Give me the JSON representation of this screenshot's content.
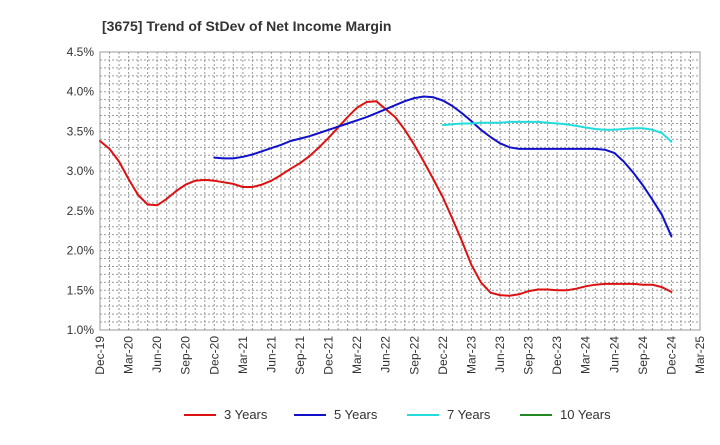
{
  "chart_data": {
    "type": "line",
    "title": "[3675]  Trend of StDev of Net Income Margin",
    "x_categories": [
      "Dec-19",
      "Mar-20",
      "Jun-20",
      "Sep-20",
      "Dec-20",
      "Mar-21",
      "Jun-21",
      "Sep-21",
      "Dec-21",
      "Mar-22",
      "Jun-22",
      "Sep-22",
      "Dec-22",
      "Mar-23",
      "Jun-23",
      "Sep-23",
      "Dec-23",
      "Mar-24",
      "Jun-24",
      "Sep-24",
      "Dec-24",
      "Mar-25"
    ],
    "y_ticks": [
      "4.5%",
      "4.0%",
      "3.5%",
      "3.0%",
      "2.5%",
      "2.0%",
      "1.5%",
      "1.0%"
    ],
    "ylim": [
      1.0,
      4.5
    ],
    "y_unit": "%",
    "grid": true,
    "legend_position": "bottom",
    "series": [
      {
        "name": "3 Years",
        "color": "#dd1111",
        "x": [
          0,
          0.333,
          0.667,
          1,
          1.333,
          1.667,
          2,
          2.333,
          2.667,
          3,
          3.333,
          3.667,
          4,
          4.333,
          4.667,
          5,
          5.333,
          5.667,
          6,
          6.333,
          6.667,
          7,
          7.333,
          7.667,
          8,
          8.333,
          8.667,
          9,
          9.333,
          9.667,
          10,
          10.333,
          10.667,
          11,
          11.333,
          11.667,
          12,
          12.333,
          12.667,
          13,
          13.333,
          13.667,
          14,
          14.333,
          14.667,
          15,
          15.333,
          15.667,
          16,
          16.333,
          16.667,
          17,
          17.333,
          17.667,
          18,
          18.333,
          18.667,
          19,
          19.333,
          19.667,
          20
        ],
        "values": [
          3.38,
          3.28,
          3.12,
          2.9,
          2.7,
          2.58,
          2.57,
          2.65,
          2.75,
          2.83,
          2.88,
          2.89,
          2.88,
          2.86,
          2.84,
          2.8,
          2.8,
          2.83,
          2.88,
          2.95,
          3.03,
          3.1,
          3.19,
          3.3,
          3.42,
          3.55,
          3.68,
          3.8,
          3.87,
          3.88,
          3.78,
          3.68,
          3.52,
          3.33,
          3.12,
          2.9,
          2.67,
          2.4,
          2.12,
          1.82,
          1.6,
          1.47,
          1.44,
          1.43,
          1.45,
          1.49,
          1.51,
          1.51,
          1.5,
          1.5,
          1.52,
          1.55,
          1.57,
          1.58,
          1.58,
          1.58,
          1.58,
          1.57,
          1.57,
          1.54,
          1.48
        ]
      },
      {
        "name": "5 Years",
        "color": "#1111cc",
        "x": [
          4,
          4.333,
          4.667,
          5,
          5.333,
          5.667,
          6,
          6.333,
          6.667,
          7,
          7.333,
          7.667,
          8,
          8.333,
          8.667,
          9,
          9.333,
          9.667,
          10,
          10.333,
          10.667,
          11,
          11.333,
          11.667,
          12,
          12.333,
          12.667,
          13,
          13.333,
          13.667,
          14,
          14.333,
          14.667,
          15,
          15.333,
          15.667,
          16,
          16.333,
          16.667,
          17,
          17.333,
          17.667,
          18,
          18.333,
          18.667,
          19,
          19.333,
          19.667,
          20
        ],
        "values": [
          3.17,
          3.16,
          3.16,
          3.18,
          3.21,
          3.25,
          3.29,
          3.33,
          3.38,
          3.41,
          3.44,
          3.48,
          3.52,
          3.56,
          3.6,
          3.64,
          3.68,
          3.73,
          3.78,
          3.83,
          3.88,
          3.92,
          3.94,
          3.93,
          3.89,
          3.82,
          3.73,
          3.63,
          3.52,
          3.43,
          3.35,
          3.3,
          3.28,
          3.28,
          3.28,
          3.28,
          3.28,
          3.28,
          3.28,
          3.28,
          3.28,
          3.27,
          3.23,
          3.12,
          2.98,
          2.82,
          2.64,
          2.45,
          2.18
        ]
      },
      {
        "name": "7 Years",
        "color": "#22dddd",
        "x": [
          12,
          12.333,
          12.667,
          13,
          13.333,
          13.667,
          14,
          14.333,
          14.667,
          15,
          15.333,
          15.667,
          16,
          16.333,
          16.667,
          17,
          17.333,
          17.667,
          18,
          18.333,
          18.667,
          19,
          19.333,
          19.667,
          20
        ],
        "values": [
          3.58,
          3.59,
          3.6,
          3.6,
          3.61,
          3.61,
          3.61,
          3.62,
          3.62,
          3.62,
          3.62,
          3.61,
          3.6,
          3.59,
          3.57,
          3.55,
          3.53,
          3.52,
          3.52,
          3.53,
          3.54,
          3.54,
          3.52,
          3.48,
          3.37
        ]
      },
      {
        "name": "10 Years",
        "color": "#228822",
        "x": [],
        "values": []
      }
    ]
  }
}
